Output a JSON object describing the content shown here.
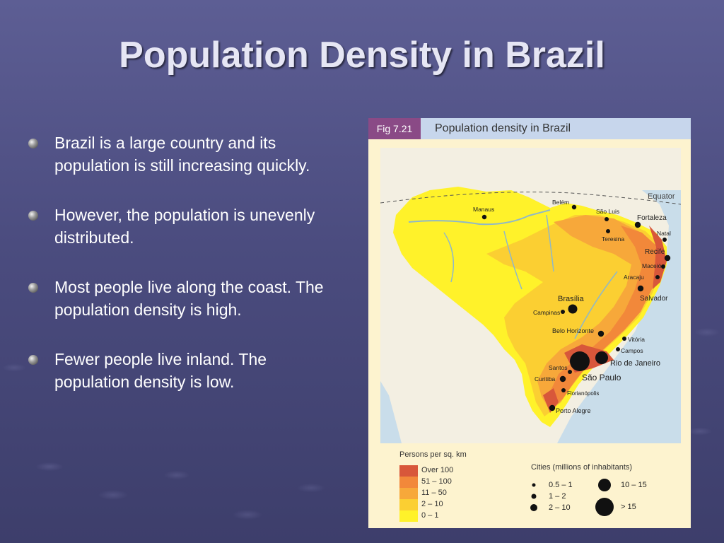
{
  "slide": {
    "title": "Population Density in Brazil",
    "bullets": [
      "Brazil is a large country and its population is still increasing quickly.",
      "However, the population is unevenly distributed.",
      "Most people live along the coast. The population density is high.",
      "Fewer people live inland. The population density is low."
    ]
  },
  "figure": {
    "tag": "Fig 7.21",
    "title": "Population density in Brazil",
    "equator_label": "Equator",
    "cities": {
      "manaus": "Manaus",
      "belem": "Belém",
      "sao_luis": "São Luis",
      "fortaleza": "Fortaleza",
      "natal": "Natal",
      "teresina": "Teresina",
      "recife": "Recife",
      "maceio": "Maceió",
      "aracaju": "Aracaju",
      "salvador": "Salvador",
      "brasilia": "Brasília",
      "campinas": "Campinas",
      "belo_horizonte": "Belo Horizonte",
      "vitoria": "Vitória",
      "campos": "Campos",
      "rio": "Rio de Janeiro",
      "santos": "Santos",
      "sao_paulo": "São Paulo",
      "curitiba": "Curitiba",
      "florianopolis": "Florianópolis",
      "porto_alegre": "Porto Alegre"
    },
    "density_legend": {
      "title": "Persons per sq. km",
      "items": [
        {
          "label": "Over 100",
          "color": "#d8573a"
        },
        {
          "label": "51 – 100",
          "color": "#f2883a"
        },
        {
          "label": "11 – 50",
          "color": "#f7a83a"
        },
        {
          "label": "2 – 10",
          "color": "#fbcf32"
        },
        {
          "label": "0 – 1",
          "color": "#fff22a"
        }
      ]
    },
    "cities_legend": {
      "title": "Cities (millions of inhabitants)",
      "items": [
        "0.5 – 1",
        "1 – 2",
        "2 – 10",
        "10 – 15",
        "> 15"
      ]
    }
  }
}
